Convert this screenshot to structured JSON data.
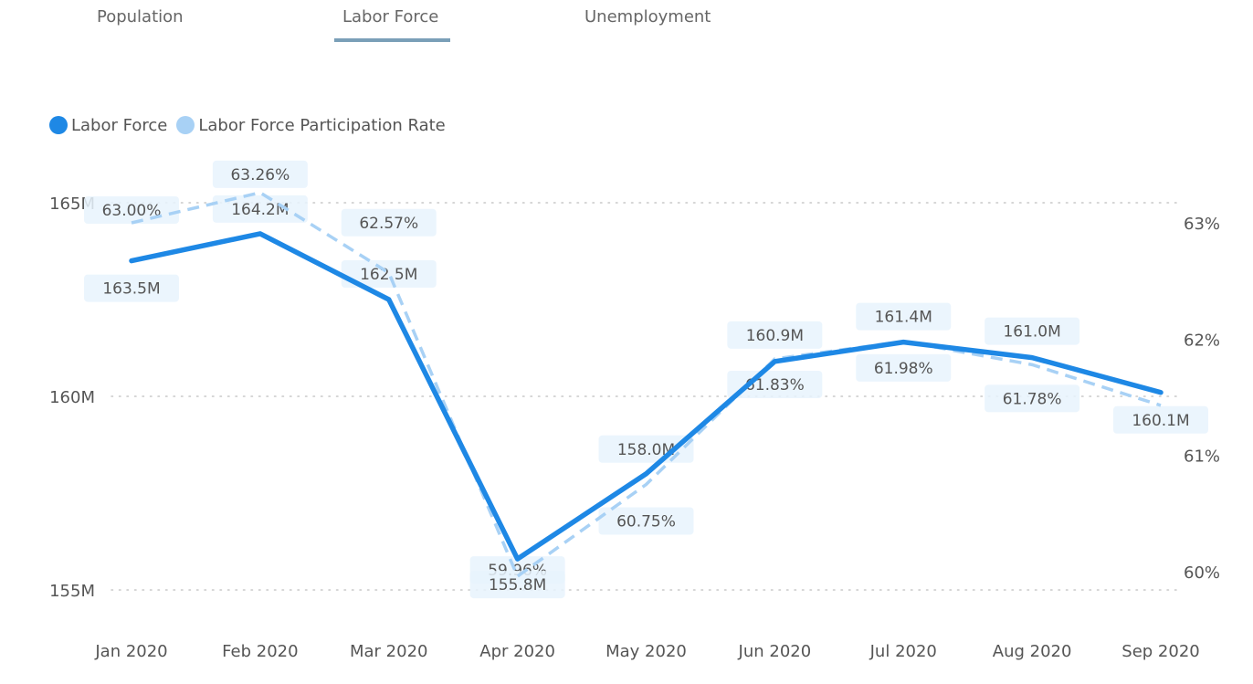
{
  "tabs": [
    {
      "label": "Population",
      "active": false
    },
    {
      "label": "Labor Force",
      "active": true
    },
    {
      "label": "Unemployment",
      "active": false
    }
  ],
  "colors": {
    "labor_force": "#1e88e5",
    "participation_rate": "#a8d1f5",
    "label_bg": "#e8f3fd",
    "grid": "#c8c8c8",
    "tab_underline": "#7a9fb8"
  },
  "chart_data": {
    "type": "line",
    "categories": [
      "Jan 2020",
      "Feb 2020",
      "Mar 2020",
      "Apr 2020",
      "May 2020",
      "Jun 2020",
      "Jul 2020",
      "Aug 2020",
      "Sep 2020"
    ],
    "series": [
      {
        "name": "Labor Force",
        "axis": "left",
        "style": "solid",
        "values": [
          163.5,
          164.2,
          162.5,
          155.8,
          158.0,
          160.9,
          161.4,
          161.0,
          160.1
        ],
        "labels": [
          "163.5M",
          "164.2M",
          "162.5M",
          "155.8M",
          "158.0M",
          "160.9M",
          "161.4M",
          "161.0M",
          "160.1M"
        ]
      },
      {
        "name": "Labor Force Participation Rate",
        "axis": "right",
        "style": "dashed",
        "values": [
          63.0,
          63.26,
          62.57,
          59.96,
          60.75,
          61.83,
          61.98,
          61.78,
          61.43
        ],
        "labels": [
          "63.00%",
          "63.26%",
          "62.57%",
          "59.96%",
          "60.75%",
          "61.83%",
          "61.98%",
          "61.78%",
          ""
        ]
      }
    ],
    "y_left": {
      "ticks": [
        155,
        160,
        165
      ],
      "tick_labels": [
        "155M",
        "160M",
        "165M"
      ],
      "range": [
        154,
        167.4
      ]
    },
    "y_right": {
      "ticks": [
        60,
        61,
        62,
        63
      ],
      "tick_labels": [
        "60%",
        "61%",
        "62%",
        "63%"
      ],
      "range": [
        59.8,
        63.6
      ]
    },
    "grid": true,
    "legend_position": "top-left"
  }
}
